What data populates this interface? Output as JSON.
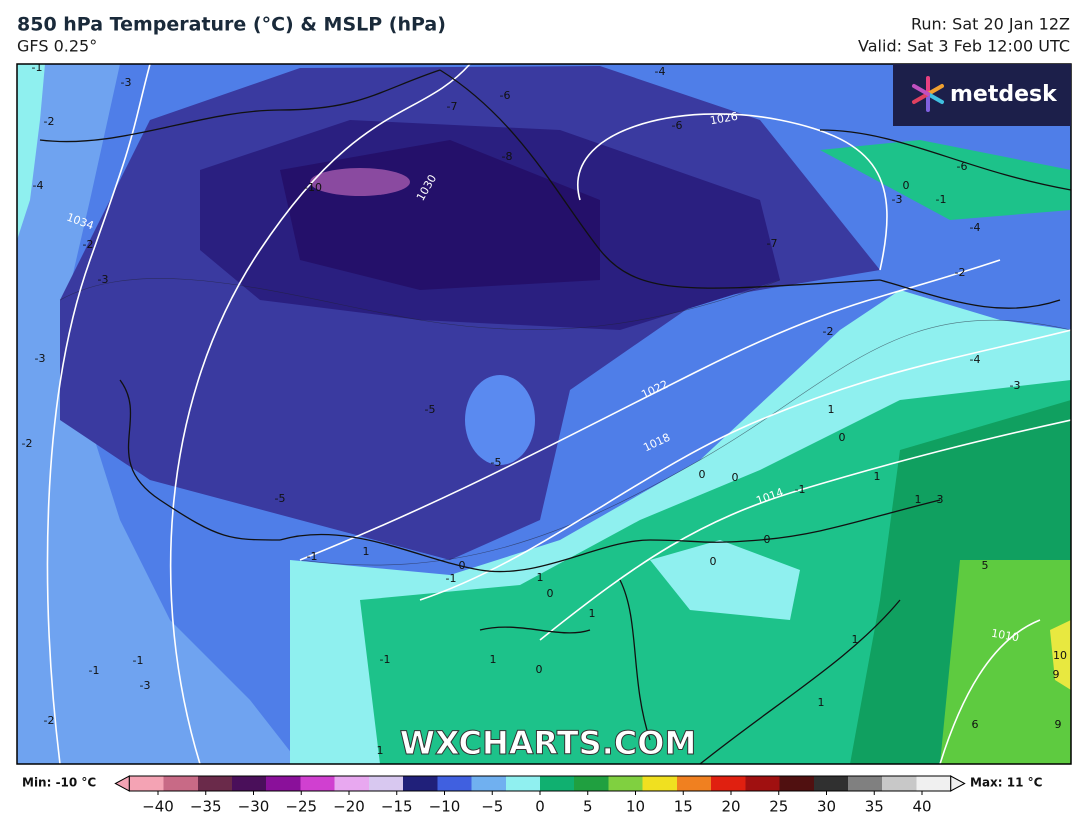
{
  "header": {
    "title": "850 hPa Temperature (°C) & MSLP (hPa)",
    "subtitle": "GFS 0.25°",
    "run": "Run: Sat 20 Jan 12Z",
    "valid": "Valid: Sat 3 Feb 12:00 UTC"
  },
  "logo": "metdesk",
  "watermark": "WXCHARTS.COM",
  "map": {
    "temperature_labels": [
      "-1",
      "-3",
      "-2",
      "-4",
      "-2",
      "-3",
      "-3",
      "-2",
      "-10",
      "-7",
      "-6",
      "-8",
      "-6",
      "-4",
      "-7",
      "-5",
      "-5",
      "-5",
      "-6",
      "0",
      "-3",
      "-1",
      "-4",
      "-2",
      "-2",
      "-4",
      "-3",
      "1",
      "0",
      "1",
      "0",
      "0",
      "-1",
      "1",
      "3",
      "0",
      "0",
      "1",
      "-1",
      "0",
      "-1",
      "1",
      "0",
      "1",
      "1",
      "0",
      "-1",
      "-1",
      "-1",
      "-3",
      "-2",
      "1",
      "1",
      "5",
      "10",
      "9",
      "6",
      "9",
      "1"
    ],
    "isobar_labels": [
      "1030",
      "1026",
      "1034",
      "1022",
      "1018",
      "1014",
      "1010"
    ]
  },
  "colorbar": {
    "min_label": "Min: -10 °C",
    "max_label": "Max: 11 °C",
    "range": [
      -43,
      43
    ],
    "colors": [
      "#f4a3b4",
      "#c86a86",
      "#6a2a4a",
      "#4a0f5a",
      "#8a109a",
      "#d040d0",
      "#e8a8f0",
      "#d8c8f0",
      "#20207a",
      "#4060e0",
      "#70b0f0",
      "#90f0f0",
      "#10b070",
      "#20a040",
      "#80d040",
      "#f0e020",
      "#f08020",
      "#e02010",
      "#a01010",
      "#501010",
      "#303030",
      "#808080",
      "#c8c8c8",
      "#f0f0f0"
    ],
    "ticks": [
      {
        "value": -40,
        "label": "−40"
      },
      {
        "value": -35,
        "label": "−35"
      },
      {
        "value": -30,
        "label": "−30"
      },
      {
        "value": -25,
        "label": "−25"
      },
      {
        "value": -20,
        "label": "−20"
      },
      {
        "value": -15,
        "label": "−15"
      },
      {
        "value": -10,
        "label": "−10"
      },
      {
        "value": -5,
        "label": "−5"
      },
      0,
      5,
      10,
      15,
      20,
      25,
      30,
      35,
      40
    ]
  }
}
